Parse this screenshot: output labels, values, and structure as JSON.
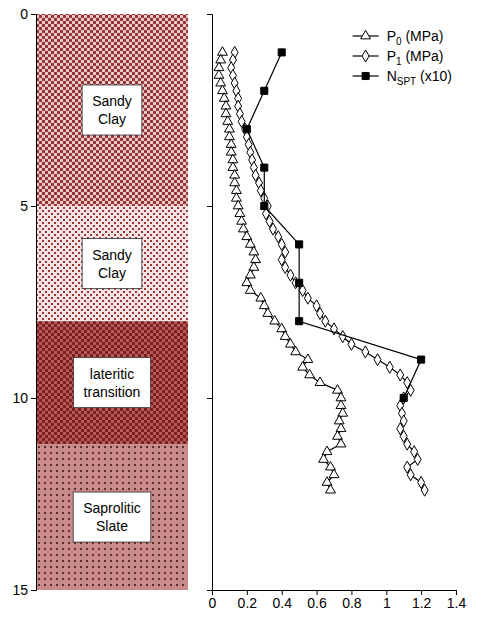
{
  "chart_data": {
    "type": "scatter",
    "xlim": [
      0,
      1.4
    ],
    "xticks": [
      0,
      0.2,
      0.4,
      0.6,
      0.8,
      1,
      1.2,
      1.4
    ],
    "ylim": [
      0,
      15
    ],
    "yticks": [
      0,
      5,
      10,
      15
    ],
    "legend": "top-right",
    "layers": [
      {
        "label": "Sandy Clay",
        "top": 0,
        "bottom": 5
      },
      {
        "label": "Sandy Clay",
        "top": 5,
        "bottom": 8
      },
      {
        "label": "lateritic transition",
        "top": 8,
        "bottom": 11.2
      },
      {
        "label": "Saprolitic Slate",
        "top": 11.2,
        "bottom": 15
      }
    ],
    "series": [
      {
        "name": "P0 (MPa)",
        "color": "#000000",
        "marker": "triangle",
        "line_style": "solid",
        "y": [
          1.0,
          1.2,
          1.4,
          1.6,
          1.8,
          2.0,
          2.2,
          2.4,
          2.6,
          2.8,
          3.0,
          3.2,
          3.4,
          3.6,
          3.8,
          4.0,
          4.2,
          4.4,
          4.6,
          4.8,
          5.0,
          5.2,
          5.4,
          5.6,
          5.8,
          6.0,
          6.2,
          6.4,
          6.6,
          6.8,
          7.0,
          7.2,
          7.4,
          7.6,
          7.8,
          8.0,
          8.2,
          8.4,
          8.6,
          8.8,
          9.0,
          9.2,
          9.4,
          9.6,
          9.8,
          10.0,
          10.2,
          10.4,
          10.6,
          10.8,
          11.0,
          11.2,
          11.4,
          11.6,
          11.8,
          12.0,
          12.2,
          12.4
        ],
        "x": [
          0.06,
          0.05,
          0.04,
          0.04,
          0.05,
          0.06,
          0.07,
          0.08,
          0.08,
          0.09,
          0.1,
          0.1,
          0.11,
          0.11,
          0.12,
          0.12,
          0.13,
          0.13,
          0.14,
          0.14,
          0.15,
          0.16,
          0.17,
          0.18,
          0.2,
          0.22,
          0.24,
          0.25,
          0.24,
          0.22,
          0.2,
          0.22,
          0.28,
          0.3,
          0.32,
          0.36,
          0.4,
          0.42,
          0.45,
          0.48,
          0.55,
          0.52,
          0.56,
          0.62,
          0.72,
          0.74,
          0.74,
          0.75,
          0.73,
          0.74,
          0.72,
          0.74,
          0.66,
          0.64,
          0.68,
          0.7,
          0.66,
          0.68
        ]
      },
      {
        "name": "P1 (MPa)",
        "color": "#000000",
        "marker": "diamond",
        "line_style": "solid",
        "y": [
          1.0,
          1.2,
          1.4,
          1.6,
          1.8,
          2.0,
          2.2,
          2.4,
          2.6,
          2.8,
          3.0,
          3.2,
          3.4,
          3.6,
          3.8,
          4.0,
          4.2,
          4.4,
          4.6,
          4.8,
          5.0,
          5.2,
          5.4,
          5.6,
          5.8,
          6.0,
          6.2,
          6.4,
          6.6,
          6.8,
          7.0,
          7.2,
          7.4,
          7.6,
          7.8,
          8.0,
          8.2,
          8.4,
          8.6,
          8.8,
          9.0,
          9.2,
          9.4,
          9.6,
          9.8,
          10.0,
          10.2,
          10.4,
          10.6,
          10.8,
          11.0,
          11.2,
          11.4,
          11.6,
          11.8,
          12.0,
          12.2,
          12.4
        ],
        "x": [
          0.13,
          0.12,
          0.11,
          0.12,
          0.13,
          0.14,
          0.15,
          0.15,
          0.16,
          0.17,
          0.19,
          0.2,
          0.21,
          0.22,
          0.23,
          0.24,
          0.25,
          0.27,
          0.28,
          0.3,
          0.32,
          0.31,
          0.33,
          0.35,
          0.38,
          0.4,
          0.42,
          0.4,
          0.42,
          0.45,
          0.48,
          0.52,
          0.55,
          0.6,
          0.62,
          0.65,
          0.7,
          0.75,
          0.8,
          0.88,
          0.95,
          1.02,
          1.08,
          1.12,
          1.14,
          1.1,
          1.08,
          1.09,
          1.1,
          1.08,
          1.1,
          1.12,
          1.16,
          1.18,
          1.12,
          1.14,
          1.2,
          1.22
        ]
      },
      {
        "name": "NSPT (x10)",
        "color": "#000000",
        "marker": "square",
        "line_style": "solid",
        "y": [
          1,
          2,
          3,
          4,
          5,
          6,
          7,
          8,
          9,
          10
        ],
        "x": [
          0.4,
          0.3,
          0.2,
          0.3,
          0.3,
          0.5,
          0.5,
          0.5,
          1.2,
          1.1
        ]
      }
    ]
  }
}
